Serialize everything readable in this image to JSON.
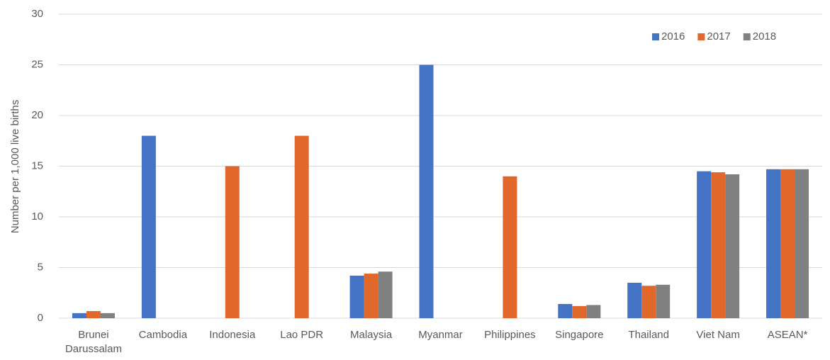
{
  "chart_data": {
    "type": "bar",
    "y_label": "Number per 1,000 live births",
    "categories": [
      "Brunei Darussalam",
      "Cambodia",
      "Indonesia",
      "Lao PDR",
      "Malaysia",
      "Myanmar",
      "Philippines",
      "Singapore",
      "Thailand",
      "Viet Nam",
      "ASEAN*"
    ],
    "series": [
      {
        "name": "2016",
        "color": "#4472c4",
        "values": [
          0.5,
          18,
          null,
          null,
          4.2,
          25,
          null,
          1.4,
          3.5,
          14.5,
          14.7
        ]
      },
      {
        "name": "2017",
        "color": "#e0682b",
        "values": [
          0.7,
          null,
          15,
          18,
          4.4,
          null,
          14,
          1.2,
          3.2,
          14.4,
          14.7
        ]
      },
      {
        "name": "2018",
        "color": "#808080",
        "values": [
          0.5,
          null,
          null,
          null,
          4.6,
          null,
          null,
          1.3,
          3.3,
          14.2,
          14.7
        ]
      }
    ],
    "ylim": [
      0,
      30
    ],
    "yticks": [
      0,
      5,
      10,
      15,
      20,
      25,
      30
    ],
    "grid": true,
    "legend": "top-right"
  }
}
